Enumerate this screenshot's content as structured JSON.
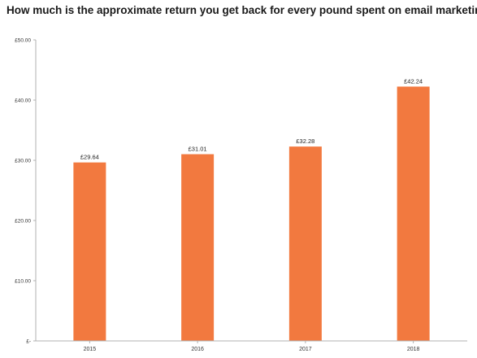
{
  "chart_data": {
    "type": "bar",
    "title": "How much is the approximate return you get back for every pound spent on email marketing?",
    "categories": [
      "2015",
      "2016",
      "2017",
      "2018"
    ],
    "values": [
      29.64,
      31.01,
      32.28,
      42.24
    ],
    "value_labels": [
      "£29.64",
      "£31.01",
      "£32.28",
      "£42.24"
    ],
    "ylim": [
      0,
      50
    ],
    "yticks": [
      0,
      10,
      20,
      30,
      40,
      50
    ],
    "ytick_labels": [
      "£-",
      "£10.00",
      "£20.00",
      "£30.00",
      "£40.00",
      "£50.00"
    ],
    "xlabel": "",
    "ylabel": "",
    "grid": false,
    "bar_color": "#F2793F",
    "axis_color": "#B0B0B0"
  }
}
